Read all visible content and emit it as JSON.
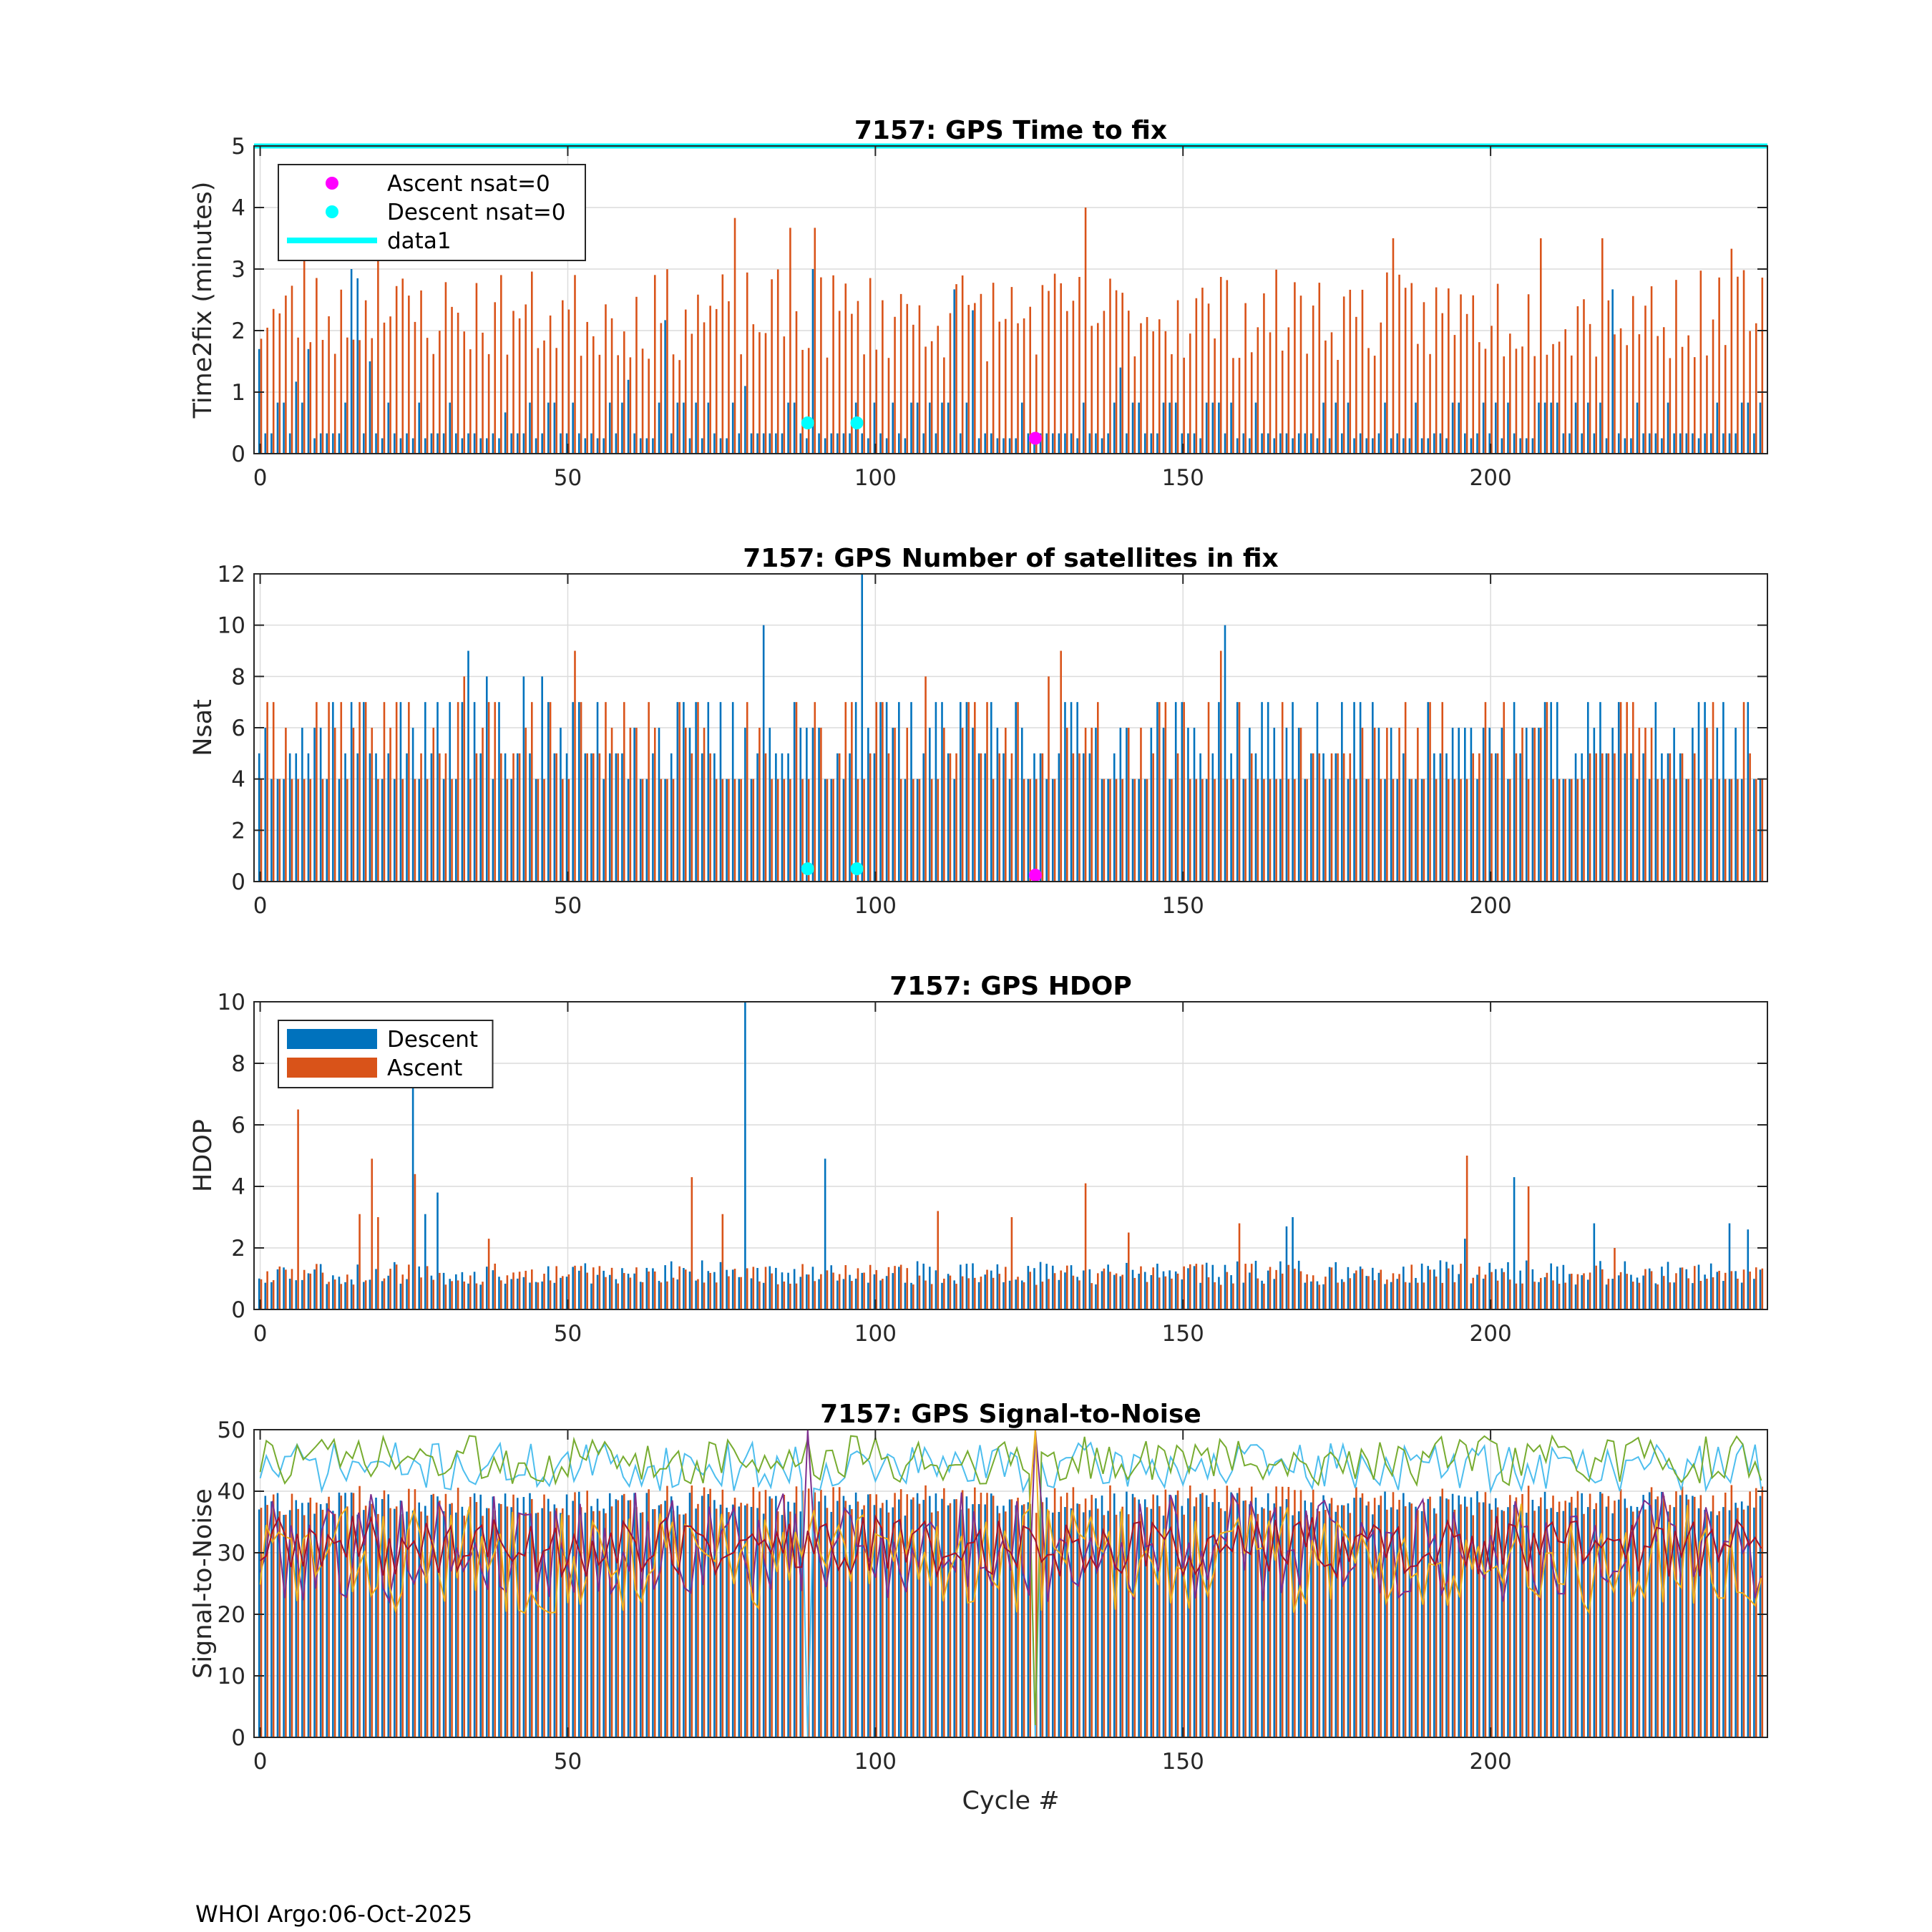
{
  "footer": "WHOI Argo:06-Oct-2025",
  "colors": {
    "descent": "#0072BD",
    "ascent": "#D95319",
    "cyan": "#00FFFF",
    "magenta": "#FF00FF",
    "grid": "#dcdcdc",
    "snr_lines": [
      "#4DBEEE",
      "#77AC30",
      "#7E2F8E",
      "#EDB120",
      "#A2142F"
    ]
  },
  "chart_data": [
    {
      "id": "time2fix",
      "type": "bar",
      "title": "7157: GPS Time to fix",
      "xlabel": "",
      "ylabel": "Time2fix (minutes)",
      "xlim": [
        -1,
        245
      ],
      "ylim": [
        0,
        5
      ],
      "xticks": [
        0,
        50,
        100,
        150,
        200
      ],
      "yticks": [
        0,
        1,
        2,
        3,
        4,
        5
      ],
      "grid": true,
      "legend": {
        "placement": "top-left",
        "entries": [
          {
            "label": "Ascent nsat=0",
            "kind": "marker",
            "color": "#FF00FF"
          },
          {
            "label": "Descent nsat=0",
            "kind": "marker",
            "color": "#00FFFF"
          },
          {
            "label": "data1",
            "kind": "line",
            "color": "#00FFFF"
          }
        ]
      },
      "reference_line": {
        "name": "data1",
        "y": 5
      },
      "series": [
        {
          "name": "Descent",
          "generator": {
            "seed": 11,
            "base": [
              0.25,
              0.33,
              0.83,
              0.33
            ],
            "spikes": [
              [
                0,
                1.7
              ],
              [
                3,
                0.83
              ],
              [
                6,
                1.17
              ],
              [
                8,
                1.7
              ],
              [
                15,
                3.0
              ],
              [
                16,
                2.85
              ],
              [
                18,
                1.5
              ],
              [
                40,
                0.67
              ],
              [
                60,
                1.2
              ],
              [
                66,
                2.17
              ],
              [
                79,
                1.1
              ],
              [
                90,
                3.0
              ],
              [
                113,
                2.67
              ],
              [
                116,
                2.33
              ],
              [
                140,
                1.4
              ],
              [
                220,
                2.67
              ]
            ]
          }
        },
        {
          "name": "Ascent",
          "generator": {
            "seed": 23,
            "min": 1.5,
            "max": 3.0,
            "spikes": [
              [
                7,
                3.4
              ],
              [
                19,
                3.3
              ],
              [
                77,
                3.83
              ],
              [
                86,
                3.67
              ],
              [
                90,
                3.67
              ],
              [
                134,
                4.0
              ],
              [
                184,
                3.5
              ],
              [
                208,
                3.5
              ],
              [
                218,
                3.5
              ],
              [
                239,
                3.33
              ]
            ]
          }
        }
      ],
      "markers": [
        {
          "name": "Descent nsat=0",
          "color": "#00FFFF",
          "points": [
            [
              89,
              0.5
            ],
            [
              97,
              0.5
            ]
          ]
        },
        {
          "name": "Ascent nsat=0",
          "color": "#FF00FF",
          "points": [
            [
              126,
              0.25
            ]
          ]
        }
      ]
    },
    {
      "id": "nsat",
      "type": "bar",
      "title": "7157: GPS Number of satellites in fix",
      "xlabel": "",
      "ylabel": "Nsat",
      "xlim": [
        -1,
        245
      ],
      "ylim": [
        0,
        12
      ],
      "xticks": [
        0,
        50,
        100,
        150,
        200
      ],
      "yticks": [
        0,
        2,
        4,
        6,
        8,
        10,
        12
      ],
      "grid": true,
      "series": [
        {
          "name": "Descent",
          "generator": {
            "seed": 37,
            "values": [
              4,
              5,
              6,
              7
            ],
            "spikes": [
              [
                34,
                9
              ],
              [
                82,
                10
              ],
              [
                98,
                12
              ],
              [
                157,
                10
              ],
              [
                37,
                8
              ],
              [
                43,
                8
              ],
              [
                46,
                8
              ]
            ]
          }
        },
        {
          "name": "Ascent",
          "generator": {
            "seed": 41,
            "values": [
              4,
              4,
              5,
              6,
              7
            ],
            "spikes": [
              [
                51,
                9
              ],
              [
                130,
                9
              ],
              [
                156,
                9
              ],
              [
                33,
                8
              ],
              [
                108,
                8
              ],
              [
                128,
                8
              ]
            ]
          }
        }
      ],
      "markers": [
        {
          "name": "Descent nsat=0",
          "color": "#00FFFF",
          "points": [
            [
              89,
              0.5
            ],
            [
              97,
              0.5
            ]
          ]
        },
        {
          "name": "Ascent nsat=0",
          "color": "#FF00FF",
          "points": [
            [
              126,
              0.25
            ]
          ]
        }
      ]
    },
    {
      "id": "hdop",
      "type": "bar",
      "title": "7157: GPS HDOP",
      "xlabel": "",
      "ylabel": "HDOP",
      "xlim": [
        -1,
        245
      ],
      "ylim": [
        0,
        10
      ],
      "xticks": [
        0,
        50,
        100,
        150,
        200
      ],
      "yticks": [
        0,
        2,
        4,
        6,
        8,
        10
      ],
      "grid": true,
      "legend": {
        "placement": "top-left",
        "entries": [
          {
            "label": "Descent",
            "kind": "patch",
            "color": "#0072BD"
          },
          {
            "label": "Ascent",
            "kind": "patch",
            "color": "#D95319"
          }
        ]
      },
      "series": [
        {
          "name": "Descent",
          "generator": {
            "seed": 53,
            "min": 0.8,
            "max": 1.6,
            "spikes": [
              [
                25,
                7.4
              ],
              [
                27,
                3.1
              ],
              [
                29,
                3.8
              ],
              [
                79,
                10
              ],
              [
                92,
                4.9
              ],
              [
                204,
                4.3
              ],
              [
                196,
                2.3
              ],
              [
                167,
                2.7
              ],
              [
                168,
                3.0
              ],
              [
                217,
                2.8
              ],
              [
                239,
                2.8
              ],
              [
                242,
                2.6
              ]
            ]
          }
        },
        {
          "name": "Ascent",
          "generator": {
            "seed": 59,
            "min": 0.8,
            "max": 1.5,
            "spikes": [
              [
                6,
                6.5
              ],
              [
                18,
                4.9
              ],
              [
                25,
                4.4
              ],
              [
                70,
                4.3
              ],
              [
                134,
                4.1
              ],
              [
                196,
                5.0
              ],
              [
                206,
                4.0
              ],
              [
                16,
                3.1
              ],
              [
                19,
                3.0
              ],
              [
                75,
                3.1
              ],
              [
                110,
                3.2
              ],
              [
                122,
                3.0
              ],
              [
                159,
                2.8
              ],
              [
                37,
                2.3
              ],
              [
                141,
                2.5
              ],
              [
                220,
                2.0
              ]
            ]
          }
        }
      ]
    },
    {
      "id": "snr",
      "type": "bar",
      "title": "7157: GPS Signal-to-Noise",
      "xlabel": "Cycle #",
      "ylabel": "Signal-to-Noise",
      "xlim": [
        -1,
        245
      ],
      "ylim": [
        0,
        50
      ],
      "xticks": [
        0,
        50,
        100,
        150,
        200
      ],
      "yticks": [
        0,
        10,
        20,
        30,
        40,
        50
      ],
      "grid": true,
      "series": [
        {
          "name": "Descent",
          "generator": {
            "seed": 61,
            "min": 36,
            "max": 40,
            "spikes": [
              [
                89,
                0
              ],
              [
                126,
                0
              ]
            ]
          }
        },
        {
          "name": "Ascent",
          "generator": {
            "seed": 67,
            "min": 36,
            "max": 41
          }
        }
      ],
      "lines": [
        {
          "color": "#4DBEEE",
          "generator": {
            "seed": 71,
            "min": 40,
            "max": 48,
            "spikes": [
              [
                89,
                0
              ],
              [
                126,
                0
              ]
            ]
          }
        },
        {
          "color": "#77AC30",
          "generator": {
            "seed": 73,
            "min": 41,
            "max": 49,
            "spikes": [
              [
                126,
                2
              ]
            ]
          }
        },
        {
          "color": "#7E2F8E",
          "generator": {
            "seed": 79,
            "min": 22,
            "max": 40,
            "spikes": [
              [
                89,
                50
              ],
              [
                126,
                50
              ]
            ]
          }
        },
        {
          "color": "#EDB120",
          "generator": {
            "seed": 83,
            "min": 20,
            "max": 38,
            "spikes": [
              [
                126,
                50
              ]
            ]
          }
        },
        {
          "color": "#A2142F",
          "generator": {
            "seed": 89,
            "min": 26,
            "max": 36
          }
        }
      ]
    }
  ]
}
